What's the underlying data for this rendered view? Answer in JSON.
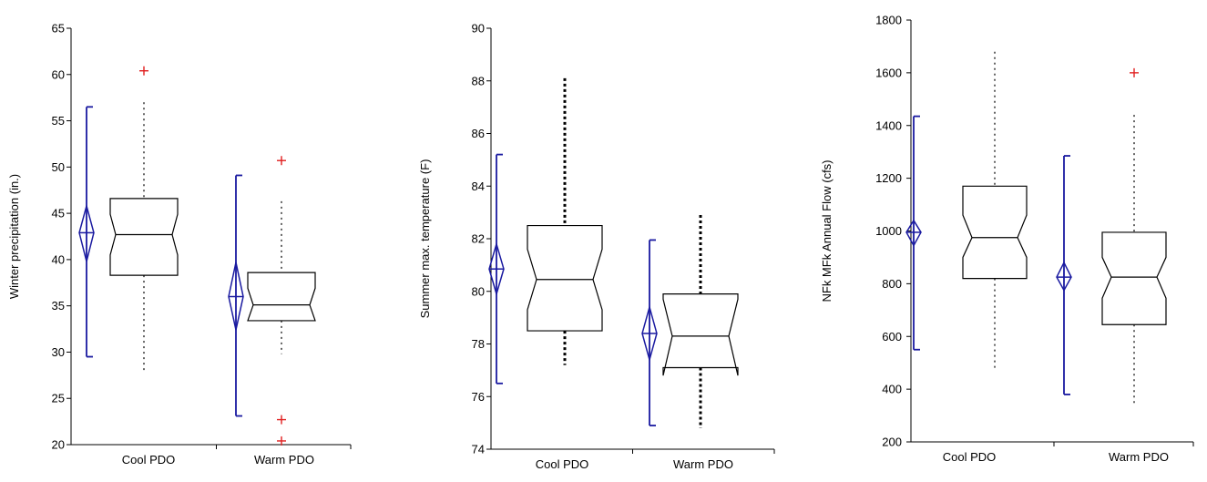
{
  "chart_data": [
    {
      "type": "boxplot",
      "ylabel": "Winter precipitation (in.)",
      "ylim": [
        20,
        65
      ],
      "yticks": [
        20,
        25,
        30,
        35,
        40,
        45,
        50,
        55,
        60,
        65
      ],
      "categories": [
        "Cool PDO",
        "Warm PDO"
      ],
      "boxes": [
        {
          "category": "Cool PDO",
          "q1": 38.3,
          "median": 42.7,
          "q3": 46.6,
          "notch_low": 40.5,
          "notch_high": 44.9,
          "whisker_low": 28.0,
          "whisker_high": 57.0,
          "outliers": [
            60.4
          ]
        },
        {
          "category": "Warm PDO",
          "q1": 33.4,
          "median": 35.1,
          "q3": 38.6,
          "notch_low": 33.4,
          "notch_high": 36.9,
          "whisker_low": 29.8,
          "whisker_high": 46.3,
          "outliers": [
            50.7,
            22.7,
            20.4
          ]
        }
      ],
      "mean_ci": [
        {
          "category": "Cool PDO",
          "mean": 42.9,
          "ci_low": 39.8,
          "ci_high": 45.8,
          "range_low": 29.5,
          "range_high": 56.5
        },
        {
          "category": "Warm PDO",
          "mean": 36.0,
          "ci_low": 32.4,
          "ci_high": 39.7,
          "range_low": 23.1,
          "range_high": 49.1
        }
      ],
      "colors": {
        "box": "#000000",
        "mean_ci": "#1a1aa0",
        "outlier": "#e02020"
      }
    },
    {
      "type": "boxplot",
      "ylabel": "Summer max. temperature (F)",
      "ylim": [
        74,
        90
      ],
      "yticks": [
        74,
        76,
        78,
        80,
        82,
        84,
        86,
        88,
        90
      ],
      "categories": [
        "Cool PDO",
        "Warm PDO"
      ],
      "boxes": [
        {
          "category": "Cool PDO",
          "q1": 78.5,
          "median": 80.45,
          "q3": 82.5,
          "notch_low": 79.3,
          "notch_high": 81.6,
          "whisker_low": 77.2,
          "whisker_high": 88.1,
          "outliers": []
        },
        {
          "category": "Warm PDO",
          "q1": 77.1,
          "median": 78.3,
          "q3": 79.9,
          "notch_low": 76.8,
          "notch_high": 79.7,
          "whisker_low": 74.8,
          "whisker_high": 82.9,
          "outliers": []
        }
      ],
      "mean_ci": [
        {
          "category": "Cool PDO",
          "mean": 80.85,
          "ci_low": 79.9,
          "ci_high": 81.8,
          "range_low": 76.5,
          "range_high": 85.2
        },
        {
          "category": "Warm PDO",
          "mean": 78.4,
          "ci_low": 77.4,
          "ci_high": 79.4,
          "range_low": 74.9,
          "range_high": 81.95
        }
      ],
      "colors": {
        "box": "#000000",
        "mean_ci": "#1a1aa0",
        "outlier": "#e02020"
      }
    },
    {
      "type": "boxplot",
      "ylabel": "NFk MFk Annual Flow (cfs)",
      "ylim": [
        200,
        1800
      ],
      "yticks": [
        200,
        400,
        600,
        800,
        1000,
        1200,
        1400,
        1600,
        1800
      ],
      "categories": [
        "Cool PDO",
        "Warm PDO"
      ],
      "boxes": [
        {
          "category": "Cool PDO",
          "q1": 820,
          "median": 975,
          "q3": 1170,
          "notch_low": 900,
          "notch_high": 1060,
          "whisker_low": 480,
          "whisker_high": 1680,
          "outliers": []
        },
        {
          "category": "Warm PDO",
          "q1": 645,
          "median": 825,
          "q3": 995,
          "notch_low": 745,
          "notch_high": 900,
          "whisker_low": 345,
          "whisker_high": 1440,
          "outliers": [
            1600
          ]
        }
      ],
      "mean_ci": [
        {
          "category": "Cool PDO",
          "mean": 995,
          "ci_low": 945,
          "ci_high": 1040,
          "range_low": 550,
          "range_high": 1435
        },
        {
          "category": "Warm PDO",
          "mean": 825,
          "ci_low": 775,
          "ci_high": 880,
          "range_low": 380,
          "range_high": 1285
        },
        {
          "category": "_",
          "mean": null
        }
      ],
      "colors": {
        "box": "#000000",
        "mean_ci": "#1a1aa0",
        "outlier": "#e02020"
      }
    }
  ]
}
